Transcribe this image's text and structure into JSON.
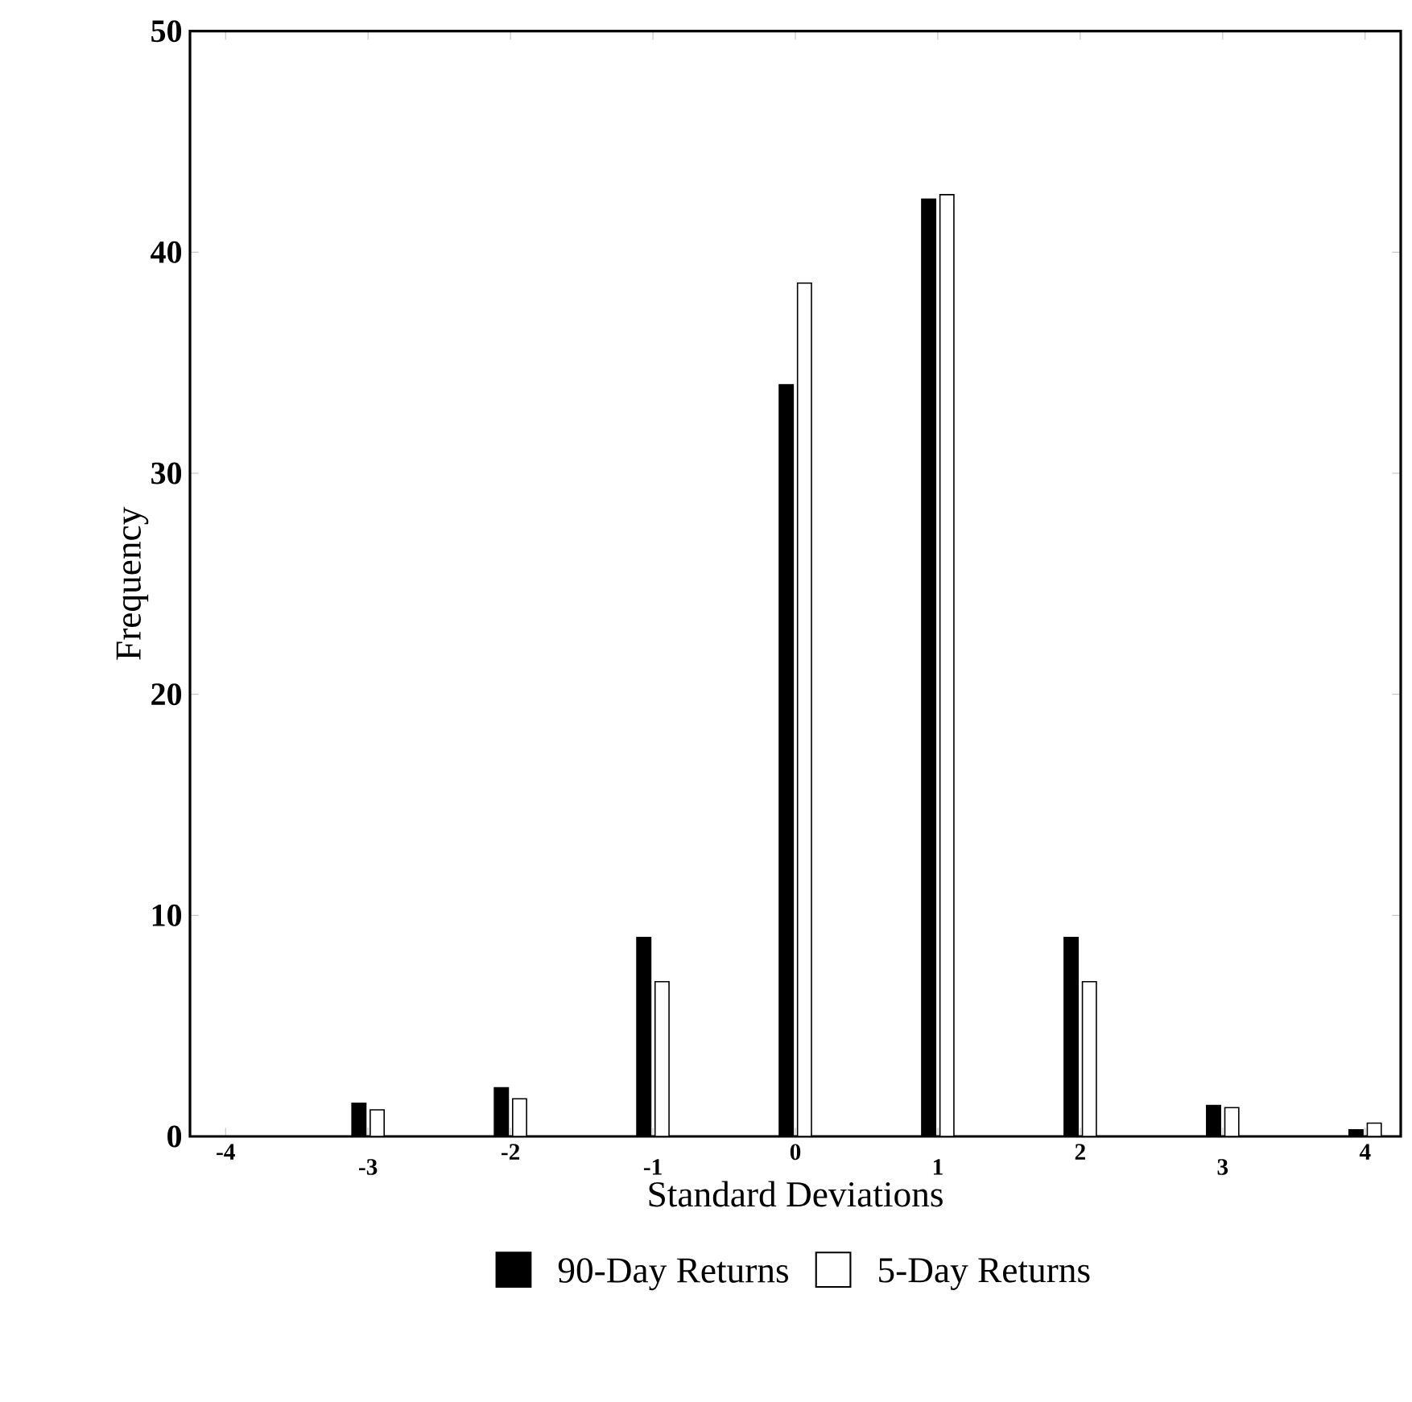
{
  "chart_data": {
    "type": "bar",
    "xlabel": "Standard Deviations",
    "ylabel": "Frequency",
    "categories": [
      "-4",
      "-3",
      "-2",
      "-1",
      "0",
      "1",
      "2",
      "3",
      "4"
    ],
    "series": [
      {
        "name": "90-Day Returns",
        "color": "#000000",
        "values": [
          0,
          1.5,
          2.2,
          9,
          34,
          42.4,
          9,
          1.4,
          0.3
        ]
      },
      {
        "name": "5-Day Returns",
        "color": "#ffffff",
        "values": [
          0,
          1.2,
          1.7,
          7,
          38.6,
          42.6,
          7,
          1.3,
          0.6
        ]
      }
    ],
    "ylim": [
      0,
      50
    ],
    "yticks": [
      0,
      10,
      20,
      30,
      40,
      50
    ],
    "grid": false,
    "legend": "bottom"
  }
}
